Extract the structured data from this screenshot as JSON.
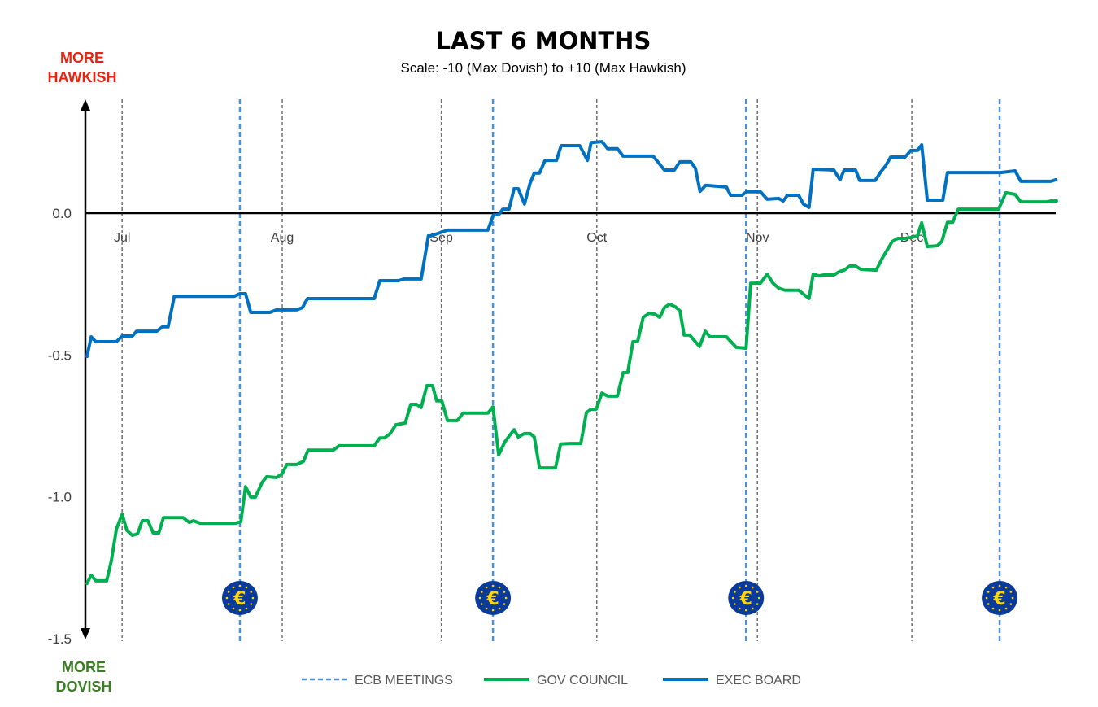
{
  "chart_data": {
    "type": "line",
    "title": "LAST 6 MONTHS",
    "subtitle": "Scale: -10 (Max Dovish)  to +10 (Max Hawkish)",
    "y_top_label": [
      "MORE",
      "HAWKISH"
    ],
    "y_bottom_label": [
      "MORE",
      "DOVISH"
    ],
    "xlabel": "",
    "ylabel": "",
    "x_unit": "days since start of window",
    "xlim": [
      0,
      187.7
    ],
    "ylim": [
      -1.5,
      0.35
    ],
    "y_ticks": [
      0.0,
      -0.5,
      -1.0,
      -1.5
    ],
    "y_tick_labels": [
      "0.0",
      "-0.5",
      "-1.0",
      "-1.5"
    ],
    "month_ticks": [
      {
        "label": "Jul",
        "x": 6.8
      },
      {
        "label": "Aug",
        "x": 37.8
      },
      {
        "label": "Sep",
        "x": 68.6
      },
      {
        "label": "Oct",
        "x": 98.7
      },
      {
        "label": "Nov",
        "x": 129.8
      },
      {
        "label": "Dec",
        "x": 159.7
      }
    ],
    "ecb_meetings": [
      29.6,
      78.6,
      127.6,
      176.7
    ],
    "colors": {
      "ecb": "#4a90d9",
      "gov": "#00b050",
      "exec": "#0070c0",
      "hawk": "#e8230f",
      "dove": "#3a7d22"
    },
    "legend": [
      "ECB MEETINGS",
      "GOV COUNCIL",
      "EXEC BOARD"
    ],
    "legend_position": "bottom",
    "series": [
      {
        "name": "EXEC BOARD",
        "points": [
          [
            0,
            -0.505
          ],
          [
            0.8,
            -0.436
          ],
          [
            1.7,
            -0.453
          ],
          [
            5.7,
            -0.453
          ],
          [
            6.8,
            -0.433
          ],
          [
            8.8,
            -0.433
          ],
          [
            9.6,
            -0.416
          ],
          [
            13.5,
            -0.416
          ],
          [
            14.6,
            -0.401
          ],
          [
            15.7,
            -0.401
          ],
          [
            16.9,
            -0.293
          ],
          [
            28.5,
            -0.293
          ],
          [
            29.6,
            -0.284
          ],
          [
            30.7,
            -0.284
          ],
          [
            31.7,
            -0.35
          ],
          [
            35.4,
            -0.35
          ],
          [
            36.7,
            -0.341
          ],
          [
            40.6,
            -0.341
          ],
          [
            41.7,
            -0.333
          ],
          [
            42.7,
            -0.301
          ],
          [
            55.6,
            -0.301
          ],
          [
            56.7,
            -0.238
          ],
          [
            60.3,
            -0.238
          ],
          [
            61.4,
            -0.232
          ],
          [
            64.7,
            -0.232
          ],
          [
            66.1,
            -0.08
          ],
          [
            66.6,
            -0.08
          ],
          [
            69.8,
            -0.06
          ],
          [
            77.6,
            -0.06
          ],
          [
            78.7,
            -0.006
          ],
          [
            79.7,
            -0.006
          ],
          [
            80.5,
            0.014
          ],
          [
            81.7,
            0.014
          ],
          [
            82.7,
            0.086
          ],
          [
            83.5,
            0.086
          ],
          [
            84.7,
            0.032
          ],
          [
            85.8,
            0.106
          ],
          [
            86.6,
            0.141
          ],
          [
            87.6,
            0.141
          ],
          [
            88.7,
            0.186
          ],
          [
            90.9,
            0.186
          ],
          [
            91.8,
            0.238
          ],
          [
            95.4,
            0.238
          ],
          [
            96.9,
            0.186
          ],
          [
            97.6,
            0.249
          ],
          [
            99.7,
            0.252
          ],
          [
            100.8,
            0.227
          ],
          [
            102.7,
            0.227
          ],
          [
            103.8,
            0.201
          ],
          [
            109.6,
            0.201
          ],
          [
            111.8,
            0.152
          ],
          [
            113.7,
            0.152
          ],
          [
            114.8,
            0.181
          ],
          [
            116.9,
            0.181
          ],
          [
            117.8,
            0.158
          ],
          [
            118.7,
            0.077
          ],
          [
            119.8,
            0.098
          ],
          [
            123.8,
            0.092
          ],
          [
            124.6,
            0.063
          ],
          [
            126.8,
            0.063
          ],
          [
            127.7,
            0.075
          ],
          [
            130.4,
            0.075
          ],
          [
            131.7,
            0.049
          ],
          [
            133.9,
            0.052
          ],
          [
            134.8,
            0.043
          ],
          [
            135.6,
            0.063
          ],
          [
            137.8,
            0.063
          ],
          [
            138.7,
            0.032
          ],
          [
            139.8,
            0.02
          ],
          [
            140.6,
            0.155
          ],
          [
            144.6,
            0.152
          ],
          [
            145.8,
            0.118
          ],
          [
            146.6,
            0.152
          ],
          [
            148.8,
            0.152
          ],
          [
            149.6,
            0.115
          ],
          [
            152.6,
            0.115
          ],
          [
            153.7,
            0.146
          ],
          [
            154.6,
            0.166
          ],
          [
            155.6,
            0.198
          ],
          [
            158.4,
            0.198
          ],
          [
            159.5,
            0.221
          ],
          [
            160.8,
            0.221
          ],
          [
            161.6,
            0.241
          ],
          [
            162.7,
            0.046
          ],
          [
            165.7,
            0.046
          ],
          [
            166.6,
            0.143
          ],
          [
            176.9,
            0.143
          ],
          [
            179.7,
            0.149
          ],
          [
            180.8,
            0.112
          ],
          [
            186.6,
            0.112
          ],
          [
            187.6,
            0.118
          ]
        ]
      },
      {
        "name": "GOV COUNCIL",
        "points": [
          [
            0,
            -1.305
          ],
          [
            0.8,
            -1.276
          ],
          [
            1.7,
            -1.296
          ],
          [
            3.8,
            -1.296
          ],
          [
            4.7,
            -1.227
          ],
          [
            5.7,
            -1.113
          ],
          [
            6.8,
            -1.061
          ],
          [
            7.7,
            -1.118
          ],
          [
            8.8,
            -1.136
          ],
          [
            9.8,
            -1.13
          ],
          [
            10.7,
            -1.084
          ],
          [
            11.8,
            -1.084
          ],
          [
            12.8,
            -1.127
          ],
          [
            13.9,
            -1.127
          ],
          [
            14.8,
            -1.073
          ],
          [
            18.6,
            -1.073
          ],
          [
            19.8,
            -1.09
          ],
          [
            20.6,
            -1.084
          ],
          [
            21.9,
            -1.093
          ],
          [
            28.8,
            -1.093
          ],
          [
            29.8,
            -1.087
          ],
          [
            30.7,
            -0.964
          ],
          [
            31.7,
            -1.001
          ],
          [
            32.6,
            -1.001
          ],
          [
            33.9,
            -0.949
          ],
          [
            34.8,
            -0.929
          ],
          [
            36.7,
            -0.932
          ],
          [
            37.8,
            -0.918
          ],
          [
            38.7,
            -0.886
          ],
          [
            40.6,
            -0.886
          ],
          [
            41.9,
            -0.875
          ],
          [
            42.8,
            -0.835
          ],
          [
            47.7,
            -0.835
          ],
          [
            48.8,
            -0.82
          ],
          [
            55.6,
            -0.82
          ],
          [
            56.7,
            -0.792
          ],
          [
            57.6,
            -0.792
          ],
          [
            58.7,
            -0.777
          ],
          [
            59.8,
            -0.746
          ],
          [
            61.6,
            -0.74
          ],
          [
            62.7,
            -0.674
          ],
          [
            63.8,
            -0.674
          ],
          [
            64.7,
            -0.685
          ],
          [
            65.8,
            -0.608
          ],
          [
            66.9,
            -0.608
          ],
          [
            67.7,
            -0.662
          ],
          [
            68.7,
            -0.662
          ],
          [
            69.8,
            -0.731
          ],
          [
            71.7,
            -0.731
          ],
          [
            72.8,
            -0.705
          ],
          [
            77.6,
            -0.705
          ],
          [
            78.6,
            -0.683
          ],
          [
            79.7,
            -0.852
          ],
          [
            80.9,
            -0.806
          ],
          [
            82.7,
            -0.763
          ],
          [
            83.5,
            -0.789
          ],
          [
            84.7,
            -0.777
          ],
          [
            85.8,
            -0.777
          ],
          [
            86.6,
            -0.789
          ],
          [
            87.6,
            -0.898
          ],
          [
            90.7,
            -0.898
          ],
          [
            91.7,
            -0.814
          ],
          [
            93.5,
            -0.812
          ],
          [
            95.6,
            -0.812
          ],
          [
            96.7,
            -0.703
          ],
          [
            97.6,
            -0.691
          ],
          [
            98.6,
            -0.691
          ],
          [
            99.7,
            -0.634
          ],
          [
            100.8,
            -0.645
          ],
          [
            102.7,
            -0.645
          ],
          [
            103.8,
            -0.562
          ],
          [
            104.7,
            -0.562
          ],
          [
            105.7,
            -0.453
          ],
          [
            106.6,
            -0.453
          ],
          [
            107.7,
            -0.367
          ],
          [
            108.8,
            -0.353
          ],
          [
            109.9,
            -0.356
          ],
          [
            110.9,
            -0.367
          ],
          [
            111.8,
            -0.333
          ],
          [
            112.8,
            -0.321
          ],
          [
            113.9,
            -0.33
          ],
          [
            114.8,
            -0.344
          ],
          [
            115.6,
            -0.43
          ],
          [
            116.7,
            -0.43
          ],
          [
            118.6,
            -0.47
          ],
          [
            119.7,
            -0.416
          ],
          [
            120.6,
            -0.436
          ],
          [
            123.8,
            -0.436
          ],
          [
            125.7,
            -0.473
          ],
          [
            127.6,
            -0.476
          ],
          [
            128.5,
            -0.247
          ],
          [
            130.4,
            -0.247
          ],
          [
            131.7,
            -0.215
          ],
          [
            132.8,
            -0.247
          ],
          [
            133.9,
            -0.264
          ],
          [
            135.1,
            -0.272
          ],
          [
            137.8,
            -0.272
          ],
          [
            139.8,
            -0.301
          ],
          [
            140.6,
            -0.215
          ],
          [
            141.7,
            -0.221
          ],
          [
            142.7,
            -0.218
          ],
          [
            144.6,
            -0.218
          ],
          [
            145.7,
            -0.206
          ],
          [
            146.6,
            -0.201
          ],
          [
            147.7,
            -0.186
          ],
          [
            148.8,
            -0.186
          ],
          [
            149.8,
            -0.198
          ],
          [
            152.8,
            -0.201
          ],
          [
            154.0,
            -0.158
          ],
          [
            155.9,
            -0.1
          ],
          [
            157.0,
            -0.089
          ],
          [
            158.4,
            -0.089
          ],
          [
            159.5,
            -0.086
          ],
          [
            160.8,
            -0.08
          ],
          [
            161.6,
            -0.034
          ],
          [
            162.7,
            -0.118
          ],
          [
            164.6,
            -0.115
          ],
          [
            165.5,
            -0.1
          ],
          [
            166.6,
            -0.032
          ],
          [
            167.6,
            -0.032
          ],
          [
            168.7,
            0.014
          ],
          [
            176.5,
            0.014
          ],
          [
            177.9,
            0.072
          ],
          [
            179.7,
            0.066
          ],
          [
            180.8,
            0.04
          ],
          [
            185.8,
            0.04
          ],
          [
            186.7,
            0.043
          ],
          [
            187.7,
            0.043
          ]
        ]
      }
    ]
  }
}
